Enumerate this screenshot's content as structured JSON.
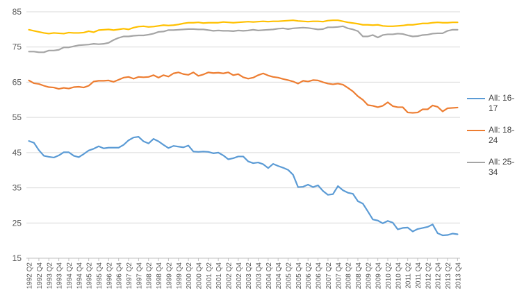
{
  "chart_data": {
    "type": "line",
    "title": "",
    "xlabel": "",
    "ylabel": "",
    "ylim": [
      15,
      85
    ],
    "yticks": [
      15,
      25,
      35,
      45,
      55,
      65,
      75,
      85
    ],
    "grid": true,
    "legend_position": "right",
    "x": [
      "1992 Q2",
      "1992 Q3",
      "1992 Q4",
      "1993 Q1",
      "1993 Q2",
      "1993 Q3",
      "1993 Q4",
      "1994 Q1",
      "1994 Q2",
      "1994 Q3",
      "1994 Q4",
      "1995 Q1",
      "1995 Q2",
      "1995 Q3",
      "1995 Q4",
      "1996 Q1",
      "1996 Q2",
      "1996 Q3",
      "1996 Q4",
      "1997 Q1",
      "1997 Q2",
      "1997 Q3",
      "1997 Q4",
      "1998 Q1",
      "1998 Q2",
      "1998 Q3",
      "1998 Q4",
      "1999 Q1",
      "1999 Q2",
      "1999 Q3",
      "1999 Q4",
      "2000 Q1",
      "2000 Q2",
      "2000 Q3",
      "2000 Q4",
      "2001 Q1",
      "2001 Q2",
      "2001 Q3",
      "2001 Q4",
      "2002 Q1",
      "2002 Q2",
      "2002 Q3",
      "2002 Q4",
      "2003 Q1",
      "2003 Q2",
      "2003 Q3",
      "2003 Q4",
      "2004 Q1",
      "2004 Q2",
      "2004 Q3",
      "2004 Q4",
      "2005 Q1",
      "2005 Q2",
      "2005 Q3",
      "2005 Q4",
      "2006 Q1",
      "2006 Q2",
      "2006 Q3",
      "2006 Q4",
      "2007 Q1",
      "2007 Q2",
      "2007 Q3",
      "2007 Q4",
      "2008 Q1",
      "2008 Q2",
      "2008 Q3",
      "2008 Q4",
      "2009 Q1",
      "2009 Q2",
      "2009 Q3",
      "2009 Q4",
      "2010 Q1",
      "2010 Q2",
      "2010 Q3",
      "2010 Q4",
      "2011 Q1",
      "2011 Q2",
      "2011 Q3",
      "2011 Q4",
      "2012 Q1",
      "2012 Q2",
      "2012 Q3",
      "2012 Q4",
      "2013 Q1",
      "2013 Q2",
      "2013 Q3",
      "2013 Q4"
    ],
    "xtick_labels": [
      "1992 Q2",
      "1992 Q4",
      "1993 Q2",
      "1993 Q4",
      "1994 Q2",
      "1994 Q4",
      "1995 Q2",
      "1995 Q4",
      "1996 Q2",
      "1996 Q4",
      "1997 Q2",
      "1997 Q4",
      "1998 Q2",
      "1998 Q4",
      "1999 Q2",
      "1999 Q4",
      "2000 Q2",
      "2000 Q4",
      "2001 Q2",
      "2001 Q4",
      "2002 Q2",
      "2002 Q4",
      "2003 Q2",
      "2003 Q4",
      "2004 Q2",
      "2004 Q4",
      "2005 Q2",
      "2005 Q4",
      "2006 Q2",
      "2006 Q4",
      "2007 Q2",
      "2007 Q4",
      "2008 Q2",
      "2008 Q4",
      "2009 Q2",
      "2009 Q4",
      "2010 Q2",
      "2010 Q4",
      "2011 Q2",
      "2011 Q4",
      "2012 Q2",
      "2012 Q4",
      "2013 Q2",
      "2013 Q4"
    ],
    "series": [
      {
        "name": "All: 16-17",
        "color": "#5B9BD5",
        "values": [
          48.3,
          47.8,
          45.7,
          44.1,
          43.8,
          43.6,
          44.2,
          45.1,
          45.1,
          44.1,
          43.7,
          44.6,
          45.6,
          46.1,
          46.8,
          46.2,
          46.4,
          46.4,
          46.4,
          47.2,
          48.5,
          49.3,
          49.5,
          48.2,
          47.6,
          48.9,
          48.2,
          47.2,
          46.3,
          46.9,
          46.7,
          46.5,
          47.0,
          45.3,
          45.2,
          45.3,
          45.2,
          44.8,
          45.0,
          44.2,
          43.1,
          43.4,
          43.9,
          43.9,
          42.5,
          42.0,
          42.2,
          41.7,
          40.6,
          41.8,
          41.2,
          40.7,
          40.1,
          38.7,
          35.2,
          35.3,
          35.9,
          35.2,
          35.7,
          34.1,
          33.0,
          33.2,
          35.5,
          34.3,
          33.6,
          33.3,
          31.2,
          30.5,
          28.3,
          26.0,
          25.7,
          24.9,
          25.6,
          25.1,
          23.2,
          23.6,
          23.7,
          22.6,
          23.3,
          23.6,
          23.9,
          24.6,
          22.1,
          21.5,
          21.6,
          22.0,
          21.8
        ]
      },
      {
        "name": "All: 18-24",
        "color": "#ED7D31",
        "values": [
          65.5,
          64.7,
          64.5,
          64.0,
          63.6,
          63.5,
          63.1,
          63.4,
          63.2,
          63.6,
          63.7,
          63.5,
          64.0,
          65.2,
          65.4,
          65.4,
          65.5,
          65.1,
          65.7,
          66.3,
          66.5,
          66.0,
          66.5,
          66.4,
          66.5,
          67.0,
          66.3,
          67.0,
          66.6,
          67.5,
          67.8,
          67.3,
          67.1,
          67.8,
          66.8,
          67.2,
          67.8,
          67.6,
          67.7,
          67.5,
          67.8,
          67.0,
          67.3,
          66.4,
          66.0,
          66.3,
          67.0,
          67.5,
          66.9,
          66.5,
          66.3,
          65.9,
          65.6,
          65.2,
          64.6,
          65.4,
          65.2,
          65.6,
          65.5,
          65.0,
          64.6,
          64.4,
          64.6,
          64.3,
          63.4,
          62.4,
          61.0,
          60.0,
          58.5,
          58.3,
          57.9,
          58.3,
          59.3,
          58.2,
          57.9,
          57.9,
          56.4,
          56.3,
          56.4,
          57.3,
          57.3,
          58.4,
          58.0,
          56.7,
          57.6,
          57.7,
          57.8
        ]
      },
      {
        "name": "All: 25-34",
        "color": "#A5A5A5",
        "values": [
          73.7,
          73.7,
          73.5,
          73.5,
          74.0,
          74.0,
          74.2,
          74.9,
          74.9,
          75.2,
          75.5,
          75.6,
          75.7,
          75.9,
          75.8,
          75.9,
          76.2,
          77.0,
          77.6,
          78.0,
          78.0,
          78.2,
          78.3,
          78.3,
          78.5,
          78.8,
          79.3,
          79.4,
          79.8,
          79.8,
          79.9,
          80.0,
          80.1,
          80.1,
          80.0,
          80.0,
          79.8,
          79.6,
          79.7,
          79.6,
          79.6,
          79.5,
          79.7,
          79.6,
          79.7,
          79.9,
          79.7,
          79.8,
          79.9,
          80.0,
          80.2,
          80.3,
          80.1,
          80.3,
          80.4,
          80.5,
          80.4,
          80.2,
          80.0,
          80.1,
          80.6,
          80.6,
          80.7,
          80.9,
          80.3,
          80.0,
          79.5,
          78.0,
          78.0,
          78.4,
          77.7,
          78.4,
          78.6,
          78.6,
          78.8,
          78.7,
          78.3,
          78.0,
          78.1,
          78.4,
          78.5,
          78.8,
          78.9,
          78.9,
          79.6,
          79.9,
          79.9
        ]
      },
      {
        "name": "",
        "color": "#FFC000",
        "values": [
          79.9,
          79.6,
          79.3,
          79.0,
          78.8,
          79.0,
          78.9,
          78.8,
          79.1,
          79.0,
          79.0,
          79.1,
          79.5,
          79.2,
          79.8,
          79.9,
          80.0,
          79.8,
          80.0,
          80.2,
          80.0,
          80.5,
          80.8,
          80.9,
          80.7,
          80.8,
          81.0,
          81.2,
          81.1,
          81.2,
          81.4,
          81.7,
          81.9,
          81.9,
          82.0,
          81.8,
          81.9,
          81.9,
          81.9,
          82.1,
          82.0,
          81.9,
          82.0,
          82.1,
          82.2,
          82.1,
          82.2,
          82.3,
          82.2,
          82.3,
          82.3,
          82.4,
          82.5,
          82.6,
          82.4,
          82.3,
          82.2,
          82.3,
          82.3,
          82.2,
          82.5,
          82.6,
          82.6,
          82.3,
          82.0,
          81.8,
          81.6,
          81.3,
          81.3,
          81.2,
          81.3,
          81.0,
          80.9,
          80.9,
          81.0,
          81.1,
          81.3,
          81.3,
          81.5,
          81.7,
          81.7,
          81.9,
          82.0,
          81.9,
          81.9,
          82.0,
          82.0
        ]
      }
    ]
  }
}
